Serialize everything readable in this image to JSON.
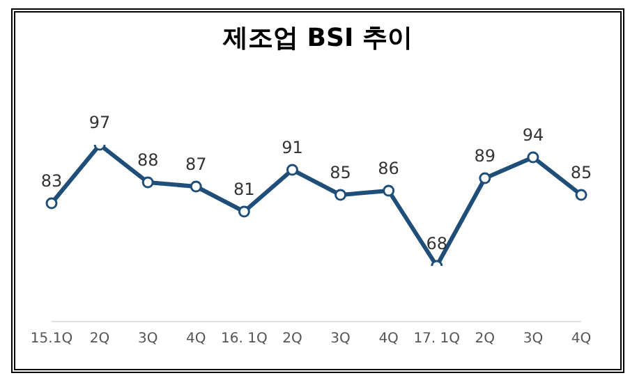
{
  "chart_data": {
    "type": "line",
    "title": "제조업 BSI 추이",
    "categories": [
      "15.1Q",
      "2Q",
      "3Q",
      "4Q",
      "16. 1Q",
      "2Q",
      "3Q",
      "4Q",
      "17. 1Q",
      "2Q",
      "3Q",
      "4Q"
    ],
    "series": [
      {
        "color": "#1f4e79",
        "values": [
          83,
          97,
          88,
          87,
          81,
          91,
          85,
          86,
          68,
          89,
          94,
          85
        ]
      }
    ],
    "tick_labels": "x",
    "data_labels": true,
    "marker": "circle",
    "line_style": "solid",
    "grid": false
  }
}
